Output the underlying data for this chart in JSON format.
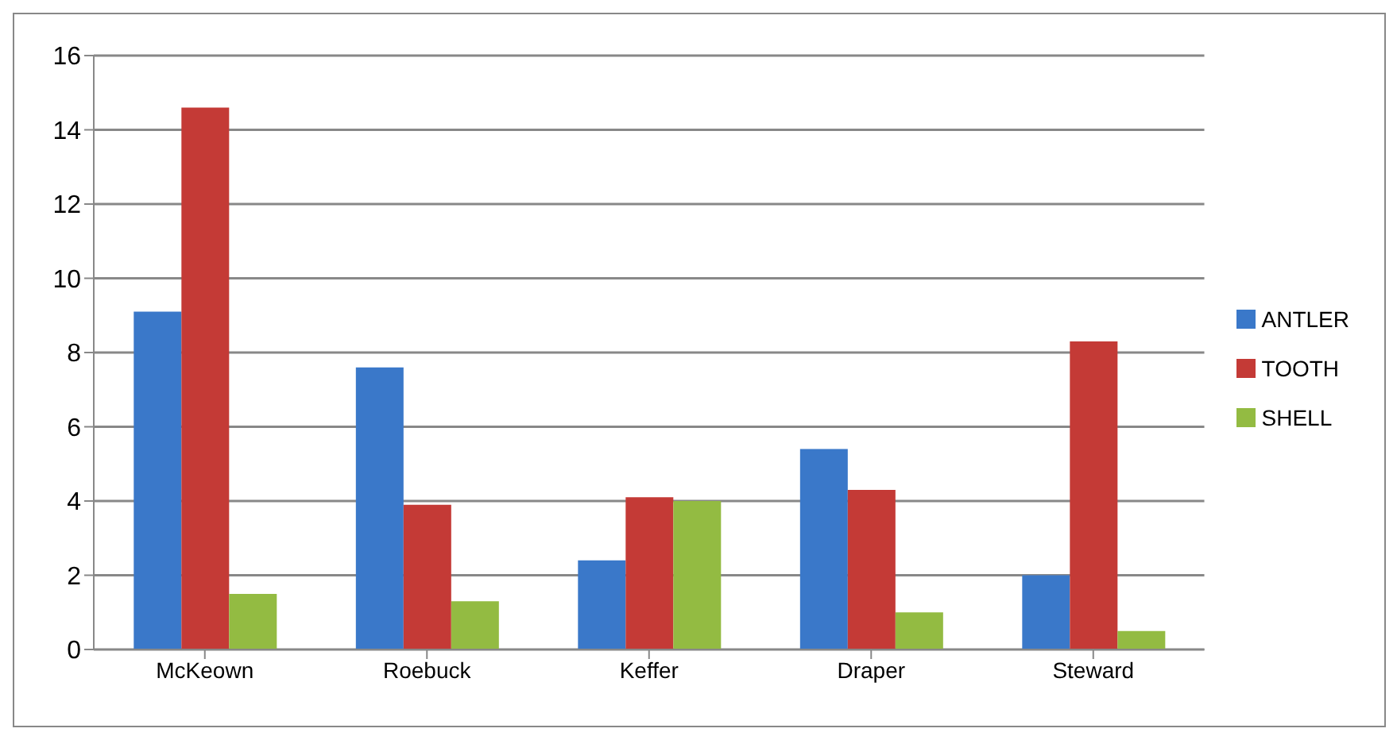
{
  "chart_data": {
    "type": "bar",
    "categories": [
      "McKeown",
      "Roebuck",
      "Keffer",
      "Draper",
      "Steward"
    ],
    "series": [
      {
        "name": "ANTLER",
        "color": "#3a78c9",
        "values": [
          9.1,
          7.6,
          2.4,
          5.4,
          2.0
        ]
      },
      {
        "name": "TOOTH",
        "color": "#c43a36",
        "values": [
          14.6,
          3.9,
          4.1,
          4.3,
          8.3
        ]
      },
      {
        "name": "SHELL",
        "color": "#93bb42",
        "values": [
          1.5,
          1.3,
          4.0,
          1.0,
          0.5
        ]
      }
    ],
    "ylim": [
      0,
      16
    ],
    "yticks": [
      0,
      2,
      4,
      6,
      8,
      10,
      12,
      14,
      16
    ],
    "grid": "y",
    "legend": "right"
  }
}
